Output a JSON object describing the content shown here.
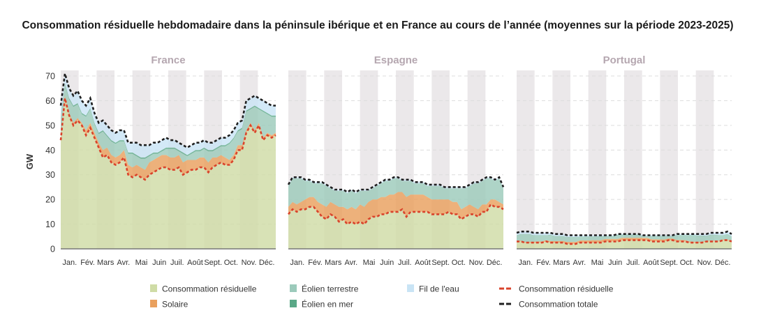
{
  "chart_data": {
    "type": "area",
    "title": "Consommation résiduelle hebdomadaire dans la péninsule ibérique et en France au cours de l’année (moyennes sur la période 2023-2025)",
    "ylabel": "GW",
    "ylim": [
      0,
      70
    ],
    "yticks": [
      "0",
      "10",
      "20",
      "30",
      "40",
      "50",
      "60",
      "70"
    ],
    "xlabel": "",
    "month_labels": [
      "Jan.",
      "Fév.",
      "Mars",
      "Avr.",
      "Mai",
      "Juin",
      "Juil.",
      "Août",
      "Sept.",
      "Oct.",
      "Nov.",
      "Déc."
    ],
    "grid": true,
    "legend_position": "bottom",
    "colors": {
      "residual_area": "#cfdca6",
      "solar": "#e9a05e",
      "onshore": "#9ccabb",
      "offshore": "#5aa887",
      "river": "#c9e4f5",
      "residual_line": "#d9432b",
      "total_line": "#1f1f1f",
      "band": "#ebe8ea",
      "panel_title": "#b5a7b0"
    },
    "legend": [
      {
        "label": "Consommation résiduelle",
        "kind": "area",
        "color": "#cfdca6"
      },
      {
        "label": "Éolien terrestre",
        "kind": "area",
        "color": "#9ccabb"
      },
      {
        "label": "Fil de l'eau",
        "kind": "area",
        "color": "#c9e4f5"
      },
      {
        "label": "Consommation résiduelle",
        "kind": "dashed-line",
        "color": "#d9432b"
      },
      {
        "label": "Solaire",
        "kind": "area",
        "color": "#e9a05e"
      },
      {
        "label": "Éolien en mer",
        "kind": "area",
        "color": "#5aa887"
      },
      {
        "label": "Consommation totale",
        "kind": "dashed-line",
        "color": "#1f1f1f"
      }
    ],
    "panels": [
      {
        "name": "France",
        "residual": [
          44,
          61,
          54,
          50,
          52,
          50,
          46,
          49,
          45,
          41,
          37,
          38,
          35,
          34,
          35,
          37,
          30,
          29,
          30,
          29,
          28,
          30,
          31,
          32,
          33,
          33,
          32,
          32,
          33,
          30,
          31,
          32,
          32,
          33,
          33,
          31,
          33,
          34,
          35,
          34,
          34,
          36,
          40,
          40,
          47,
          50,
          47,
          50,
          44,
          46,
          45,
          46
        ],
        "solar": [
          1,
          1,
          1,
          1,
          1,
          1,
          2,
          2,
          2,
          2,
          3,
          3,
          3,
          3,
          3,
          3,
          4,
          4,
          4,
          4,
          4,
          5,
          5,
          5,
          5,
          5,
          5,
          5,
          5,
          5,
          5,
          4,
          4,
          4,
          4,
          4,
          4,
          3,
          3,
          3,
          2,
          2,
          2,
          2,
          1,
          1,
          1,
          1,
          1,
          1,
          1,
          1
        ],
        "offshore": 0.5,
        "river": [
          5,
          4,
          4,
          4,
          5,
          5,
          4,
          4,
          4,
          4,
          4,
          4,
          4,
          4,
          4,
          4,
          4,
          4,
          5,
          5,
          5,
          4,
          4,
          4,
          4,
          4,
          3,
          3,
          3,
          3,
          3,
          3,
          3,
          3,
          3,
          3,
          3,
          3,
          3,
          3,
          3,
          3,
          3,
          3,
          4,
          4,
          4,
          4,
          4,
          4,
          4,
          4
        ],
        "total": [
          58,
          71,
          65,
          62,
          64,
          60,
          58,
          61,
          55,
          51,
          52,
          50,
          48,
          47,
          48,
          48,
          43,
          43,
          43,
          42,
          42,
          42,
          43,
          43,
          44,
          45,
          44,
          44,
          43,
          42,
          41,
          42,
          43,
          43,
          44,
          43,
          43,
          44,
          45,
          45,
          46,
          48,
          51,
          52,
          60,
          61,
          62,
          61,
          60,
          59,
          58,
          58
        ]
      },
      {
        "name": "Espagne",
        "residual": [
          14,
          16,
          15,
          16,
          16,
          17,
          17,
          15,
          13,
          12,
          14,
          13,
          11,
          12,
          10,
          11,
          10,
          11,
          10,
          12,
          13,
          13,
          14,
          14,
          15,
          15,
          15,
          16,
          13,
          15,
          15,
          15,
          15,
          15,
          14,
          14,
          14,
          14,
          15,
          14,
          14,
          12,
          13,
          14,
          14,
          13,
          15,
          15,
          18,
          17,
          17,
          16
        ],
        "solar": [
          3,
          3,
          3,
          3,
          4,
          4,
          4,
          4,
          5,
          5,
          5,
          5,
          6,
          5,
          6,
          6,
          6,
          7,
          7,
          7,
          7,
          7,
          7,
          7,
          7,
          7,
          8,
          7,
          8,
          7,
          7,
          7,
          7,
          6,
          6,
          6,
          6,
          6,
          5,
          5,
          5,
          4,
          4,
          4,
          3,
          3,
          3,
          3,
          2,
          3,
          2,
          2
        ],
        "offshore": 0,
        "river": 0.5,
        "total": [
          26,
          29,
          29,
          29,
          28,
          28,
          27,
          27,
          27,
          26,
          25,
          24,
          24,
          24,
          23,
          24,
          23,
          24,
          24,
          24,
          25,
          26,
          27,
          28,
          28,
          29,
          29,
          28,
          28,
          28,
          27,
          27,
          27,
          26,
          26,
          26,
          26,
          25,
          25,
          25,
          25,
          25,
          25,
          26,
          27,
          27,
          28,
          29,
          29,
          28,
          29,
          25
        ]
      },
      {
        "name": "Portugal",
        "residual": [
          3,
          3,
          2.5,
          2.5,
          2.5,
          2.5,
          2.5,
          3,
          2.5,
          2.5,
          2.5,
          2.5,
          2,
          2,
          2,
          2.5,
          2.5,
          2.5,
          2.5,
          2.5,
          2.5,
          3,
          3,
          3,
          3,
          3.5,
          3.5,
          3.5,
          3.5,
          3.5,
          3.5,
          3.5,
          3,
          3,
          3,
          3,
          3.5,
          3.5,
          3,
          3,
          3,
          2.5,
          2.5,
          2.5,
          2.5,
          3,
          3,
          3,
          3,
          3.5,
          3.5,
          3
        ],
        "solar": [
          0.3,
          0.3,
          0.3,
          0.4,
          0.4,
          0.5,
          0.5,
          0.5,
          0.6,
          0.6,
          0.7,
          0.7,
          0.8,
          0.8,
          0.8,
          0.9,
          0.9,
          0.9,
          1,
          1,
          1,
          1,
          1,
          1,
          1,
          1,
          1,
          1,
          1,
          1,
          1,
          0.9,
          0.9,
          0.9,
          0.8,
          0.8,
          0.7,
          0.7,
          0.6,
          0.6,
          0.5,
          0.5,
          0.4,
          0.4,
          0.4,
          0.3,
          0.3,
          0.3,
          0.3,
          0.3,
          0.3,
          0.3
        ],
        "offshore": 0.1,
        "river": [
          1,
          1,
          1,
          1,
          1,
          1,
          1,
          1,
          0.8,
          0.8,
          0.8,
          0.8,
          0.7,
          0.7,
          0.7,
          0.6,
          0.6,
          0.5,
          0.5,
          0.5,
          0.4,
          0.4,
          0.3,
          0.3,
          0.3,
          0.3,
          0.3,
          0.3,
          0.3,
          0.3,
          0.3,
          0.3,
          0.3,
          0.3,
          0.3,
          0.3,
          0.3,
          0.3,
          0.4,
          0.4,
          0.4,
          0.5,
          0.5,
          0.6,
          0.6,
          0.7,
          0.8,
          0.8,
          0.9,
          0.9,
          1,
          1
        ],
        "total": [
          6.5,
          7,
          7,
          7,
          6.5,
          6.5,
          6.5,
          6.5,
          6.5,
          6,
          6,
          6,
          5.5,
          5.5,
          5.5,
          5.5,
          5.5,
          5.5,
          5.5,
          5.5,
          5.5,
          5.5,
          5.5,
          5.5,
          6,
          6,
          6,
          6,
          6,
          6,
          5.5,
          5.5,
          5.5,
          5.5,
          5.5,
          5.5,
          5.5,
          5.5,
          6,
          6,
          6,
          6,
          6,
          6,
          6,
          6,
          6.5,
          6.5,
          6.5,
          6.5,
          7,
          6
        ]
      }
    ]
  }
}
